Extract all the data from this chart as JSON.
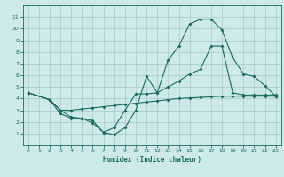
{
  "xlabel": "Humidex (Indice chaleur)",
  "bg_color": "#ceeae6",
  "grid_color": "#aacfcb",
  "line_color": "#1a6b5e",
  "line1_x": [
    0,
    2,
    3,
    4,
    5,
    6,
    7,
    8,
    9,
    10,
    11,
    12,
    13,
    14,
    15,
    16,
    17,
    18,
    19,
    20,
    21,
    22,
    23
  ],
  "line1_y": [
    4.5,
    3.9,
    2.7,
    2.3,
    2.3,
    1.9,
    1.1,
    0.9,
    1.5,
    3.0,
    5.9,
    4.5,
    7.3,
    8.5,
    10.4,
    10.8,
    10.8,
    9.9,
    7.5,
    6.1,
    5.9,
    5.1,
    4.2
  ],
  "line2_x": [
    0,
    2,
    3,
    4,
    5,
    6,
    7,
    8,
    9,
    10,
    11,
    12,
    13,
    14,
    15,
    16,
    17,
    18,
    19,
    20,
    21,
    22,
    23
  ],
  "line2_y": [
    4.5,
    3.9,
    3.0,
    2.4,
    2.3,
    2.1,
    1.1,
    1.5,
    3.0,
    4.4,
    4.4,
    4.5,
    5.0,
    5.5,
    6.1,
    6.5,
    8.5,
    8.5,
    4.5,
    4.3,
    4.3,
    4.3,
    4.3
  ],
  "line3_x": [
    0,
    2,
    3,
    4,
    5,
    6,
    7,
    8,
    9,
    10,
    11,
    12,
    13,
    14,
    15,
    16,
    17,
    18,
    19,
    20,
    21,
    22,
    23
  ],
  "line3_y": [
    4.5,
    3.9,
    3.0,
    3.0,
    3.1,
    3.2,
    3.3,
    3.4,
    3.5,
    3.6,
    3.7,
    3.8,
    3.9,
    4.0,
    4.05,
    4.1,
    4.15,
    4.2,
    4.2,
    4.2,
    4.2,
    4.2,
    4.2
  ],
  "ylim": [
    0,
    12
  ],
  "xlim_min": -0.5,
  "xlim_max": 23.5,
  "yticks": [
    1,
    2,
    3,
    4,
    5,
    6,
    7,
    8,
    9,
    10,
    11
  ],
  "xticks": [
    0,
    1,
    2,
    3,
    4,
    5,
    6,
    7,
    8,
    9,
    10,
    11,
    12,
    13,
    14,
    15,
    16,
    17,
    18,
    19,
    20,
    21,
    22,
    23
  ]
}
